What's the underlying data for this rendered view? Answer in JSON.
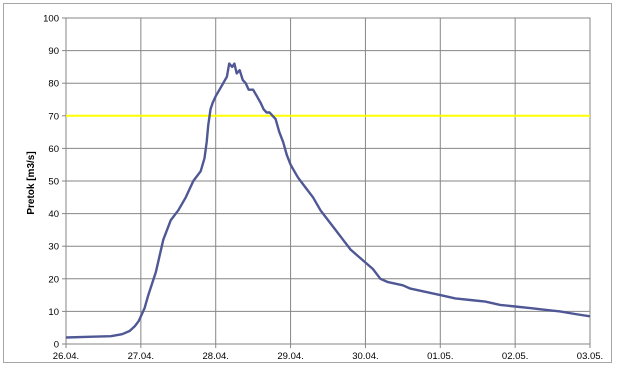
{
  "chart_data": {
    "type": "line",
    "title": "",
    "xlabel": "",
    "ylabel": "Pretok [m3/s]",
    "ylim": [
      0,
      100
    ],
    "yticks": [
      0,
      10,
      20,
      30,
      40,
      50,
      60,
      70,
      80,
      90,
      100
    ],
    "xlim": [
      "2014-04-26",
      "2014-05-03"
    ],
    "xtick_labels": [
      "26.04.",
      "27.04.",
      "28.04.",
      "29.04.",
      "30.04.",
      "01.05.",
      "02.05.",
      "03.05."
    ],
    "grid": true,
    "legend": "none",
    "threshold": {
      "y": 70,
      "color": "#ffff00"
    },
    "series": [
      {
        "color": "#4f5895",
        "x_days": [
          0,
          0.3,
          0.6,
          0.75,
          0.85,
          0.92,
          0.97,
          1.0,
          1.05,
          1.1,
          1.2,
          1.3,
          1.4,
          1.5,
          1.6,
          1.7,
          1.8,
          1.85,
          1.88,
          1.9,
          1.93,
          1.96,
          2.0,
          2.05,
          2.1,
          2.15,
          2.18,
          2.22,
          2.25,
          2.28,
          2.32,
          2.36,
          2.4,
          2.44,
          2.5,
          2.55,
          2.6,
          2.64,
          2.68,
          2.72,
          2.76,
          2.8,
          2.85,
          2.9,
          2.95,
          3.0,
          3.05,
          3.1,
          3.2,
          3.3,
          3.4,
          3.5,
          3.6,
          3.7,
          3.8,
          3.9,
          4.0,
          4.1,
          4.2,
          4.3,
          4.4,
          4.5,
          4.6,
          4.8,
          5.0,
          5.2,
          5.4,
          5.6,
          5.8,
          6.0,
          6.2,
          6.4,
          6.6,
          6.8,
          7.0
        ],
        "y": [
          2,
          2.2,
          2.4,
          3,
          4,
          5.5,
          7,
          8.5,
          11,
          15,
          22,
          32,
          38,
          41,
          45,
          50,
          53,
          57,
          62,
          67,
          72,
          74,
          76,
          78,
          80,
          82,
          86,
          85,
          86,
          83,
          84,
          81,
          80,
          78,
          78,
          76,
          74,
          72,
          71,
          71,
          70,
          69,
          65,
          62,
          58,
          55,
          53,
          51,
          48,
          45,
          41,
          38,
          35,
          32,
          29,
          27,
          25,
          23,
          20,
          19,
          18.5,
          18,
          17,
          16,
          15,
          14,
          13.5,
          13,
          12,
          11.5,
          11,
          10.5,
          10,
          9.2,
          8.5
        ]
      }
    ]
  }
}
